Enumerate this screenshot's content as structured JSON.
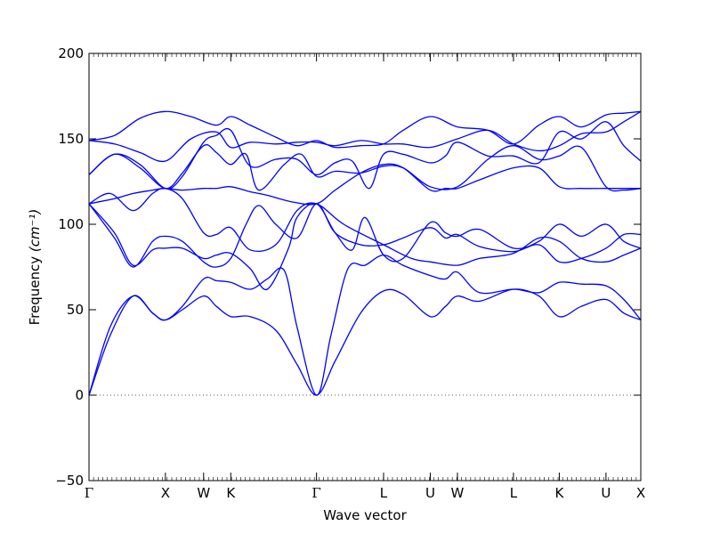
{
  "chart_data": {
    "type": "line",
    "xlabel": "Wave vector",
    "ylabel": "Frequency",
    "ylabel_unit": "(cm⁻¹)",
    "ylim": [
      -50,
      200
    ],
    "y_ticks": [
      -50,
      0,
      50,
      100,
      150,
      200
    ],
    "y_tick_labels": [
      "−50",
      "0",
      "50",
      "100",
      "150",
      "200"
    ],
    "xlim": [
      0,
      6.5
    ],
    "high_symmetry_points": [
      {
        "label": "Γ",
        "x": 0
      },
      {
        "label": "X",
        "x": 0.9
      },
      {
        "label": "W",
        "x": 1.35
      },
      {
        "label": "K",
        "x": 1.67
      },
      {
        "label": "Γ",
        "x": 2.68
      },
      {
        "label": "L",
        "x": 3.47
      },
      {
        "label": "U",
        "x": 4.02
      },
      {
        "label": "W",
        "x": 4.34
      },
      {
        "label": "L",
        "x": 5.0
      },
      {
        "label": "K",
        "x": 5.54
      },
      {
        "label": "U",
        "x": 6.09
      },
      {
        "label": "X",
        "x": 6.5
      }
    ],
    "zero_line": {
      "y": 0,
      "style": "dotted"
    },
    "line_color": "#0000ff",
    "series": [
      {
        "x": [
          0,
          0.25,
          0.52,
          0.75,
          0.9,
          1.1,
          1.35,
          1.5,
          1.67,
          1.9,
          2.2,
          2.45,
          2.68,
          2.9,
          3.2,
          3.47,
          3.7,
          4.02,
          4.2,
          4.34,
          4.6,
          5.0,
          5.3,
          5.54,
          5.8,
          6.09,
          6.3,
          6.5
        ],
        "y": [
          0,
          35,
          58,
          48,
          44,
          50,
          58,
          52,
          46,
          46,
          38,
          18,
          0,
          20,
          48,
          61,
          59,
          46,
          52,
          58,
          55,
          62,
          58,
          46,
          52,
          56,
          48,
          44
        ]
      },
      {
        "x": [
          0,
          0.25,
          0.52,
          0.75,
          0.9,
          1.1,
          1.35,
          1.5,
          1.67,
          1.9,
          2.1,
          2.3,
          2.45,
          2.68,
          2.85,
          3.05,
          3.25,
          3.47,
          3.7,
          4.02,
          4.2,
          4.34,
          4.6,
          5.0,
          5.3,
          5.54,
          5.8,
          6.09,
          6.3,
          6.5
        ],
        "y": [
          0,
          40,
          58,
          48,
          44,
          52,
          68,
          67,
          66,
          62,
          68,
          73,
          40,
          0,
          35,
          74,
          76,
          82,
          76,
          70,
          68,
          72,
          60,
          62,
          60,
          66,
          65,
          64,
          56,
          44
        ]
      },
      {
        "x": [
          0,
          0.3,
          0.52,
          0.75,
          0.9,
          1.1,
          1.35,
          1.5,
          1.67,
          1.85,
          2.0,
          2.2,
          2.45,
          2.68,
          2.9,
          3.2,
          3.47,
          3.7,
          4.02,
          4.2,
          4.34,
          4.6,
          5.0,
          5.3,
          5.54,
          5.8,
          6.09,
          6.3,
          6.5
        ],
        "y": [
          112,
          92,
          75,
          90,
          93,
          90,
          78,
          75,
          80,
          100,
          111,
          100,
          92,
          112,
          95,
          88,
          88,
          92,
          98,
          92,
          94,
          87,
          84,
          88,
          78,
          80,
          86,
          94,
          94
        ]
      },
      {
        "x": [
          0,
          0.3,
          0.52,
          0.75,
          0.9,
          1.1,
          1.35,
          1.5,
          1.67,
          1.9,
          2.1,
          2.35,
          2.45,
          2.68,
          2.9,
          3.1,
          3.25,
          3.47,
          3.7,
          4.02,
          4.2,
          4.34,
          4.6,
          5.0,
          5.3,
          5.54,
          5.8,
          6.09,
          6.3,
          6.5
        ],
        "y": [
          112,
          95,
          76,
          85,
          86,
          86,
          80,
          82,
          83,
          74,
          62,
          86,
          104,
          112,
          95,
          85,
          104,
          82,
          80,
          101,
          95,
          93,
          97,
          86,
          90,
          100,
          93,
          100,
          90,
          86
        ]
      },
      {
        "x": [
          0,
          0.25,
          0.52,
          0.75,
          0.9,
          1.1,
          1.35,
          1.5,
          1.67,
          1.9,
          2.2,
          2.45,
          2.68,
          3.0,
          3.47,
          3.8,
          4.02,
          4.34,
          4.6,
          5.0,
          5.3,
          5.54,
          5.8,
          6.09,
          6.3,
          6.5
        ],
        "y": [
          112,
          118,
          108,
          118,
          121,
          115,
          95,
          94,
          98,
          85,
          88,
          108,
          112,
          100,
          88,
          80,
          78,
          76,
          80,
          83,
          92,
          90,
          80,
          78,
          82,
          86
        ]
      },
      {
        "x": [
          0,
          0.3,
          0.52,
          0.75,
          0.9,
          1.1,
          1.35,
          1.5,
          1.67,
          1.9,
          2.1,
          2.4,
          2.68,
          2.9,
          3.2,
          3.47,
          3.7,
          4.02,
          4.2,
          4.34,
          4.6,
          5.0,
          5.3,
          5.54,
          5.8,
          6.09,
          6.3,
          6.5
        ],
        "y": [
          112,
          115,
          118,
          120,
          121,
          120,
          121,
          121,
          122,
          119,
          117,
          113,
          112,
          120,
          130,
          135,
          133,
          120,
          121,
          121,
          126,
          133,
          133,
          122,
          121,
          121,
          121,
          121
        ]
      },
      {
        "x": [
          0,
          0.3,
          0.6,
          0.9,
          1.1,
          1.35,
          1.5,
          1.67,
          1.85,
          2.0,
          2.3,
          2.5,
          2.68,
          2.9,
          3.2,
          3.47,
          3.7,
          4.02,
          4.34,
          4.7,
          5.0,
          5.3,
          5.54,
          5.8,
          6.09,
          6.3,
          6.5
        ],
        "y": [
          129,
          141,
          133,
          121,
          130,
          146,
          142,
          135,
          141,
          120,
          135,
          141,
          128,
          131,
          130,
          134,
          133,
          122,
          122,
          138,
          146,
          138,
          140,
          145,
          122,
          120,
          121
        ]
      },
      {
        "x": [
          0,
          0.3,
          0.6,
          0.9,
          1.1,
          1.35,
          1.5,
          1.67,
          1.9,
          2.2,
          2.45,
          2.68,
          2.9,
          3.1,
          3.3,
          3.47,
          3.7,
          4.02,
          4.2,
          4.34,
          4.7,
          5.0,
          5.3,
          5.54,
          5.8,
          6.09,
          6.3,
          6.5
        ],
        "y": [
          129,
          141,
          135,
          121,
          128,
          148,
          152,
          155,
          134,
          138,
          138,
          129,
          136,
          137,
          121,
          141,
          141,
          136,
          140,
          148,
          140,
          140,
          136,
          154,
          150,
          160,
          146,
          137
        ]
      },
      {
        "x": [
          0,
          0.3,
          0.6,
          0.9,
          1.2,
          1.5,
          1.67,
          1.9,
          2.2,
          2.45,
          2.68,
          2.9,
          3.2,
          3.47,
          3.7,
          4.02,
          4.34,
          4.7,
          5.0,
          5.3,
          5.54,
          5.8,
          6.09,
          6.3,
          6.5
        ],
        "y": [
          149,
          147,
          142,
          137,
          150,
          154,
          145,
          148,
          147,
          148,
          148,
          146,
          149,
          147,
          147,
          145,
          150,
          155,
          147,
          143,
          146,
          153,
          154,
          160,
          166
        ]
      },
      {
        "x": [
          0,
          0.3,
          0.6,
          0.9,
          1.2,
          1.5,
          1.67,
          1.9,
          2.2,
          2.45,
          2.68,
          2.9,
          3.2,
          3.47,
          3.7,
          4.02,
          4.34,
          4.7,
          5.0,
          5.3,
          5.54,
          5.8,
          6.09,
          6.3,
          6.5
        ],
        "y": [
          149,
          152,
          162,
          166,
          163,
          158,
          163,
          158,
          151,
          146,
          149,
          145,
          146,
          147,
          155,
          163,
          157,
          155,
          147,
          158,
          163,
          157,
          164,
          165,
          166
        ]
      }
    ]
  }
}
